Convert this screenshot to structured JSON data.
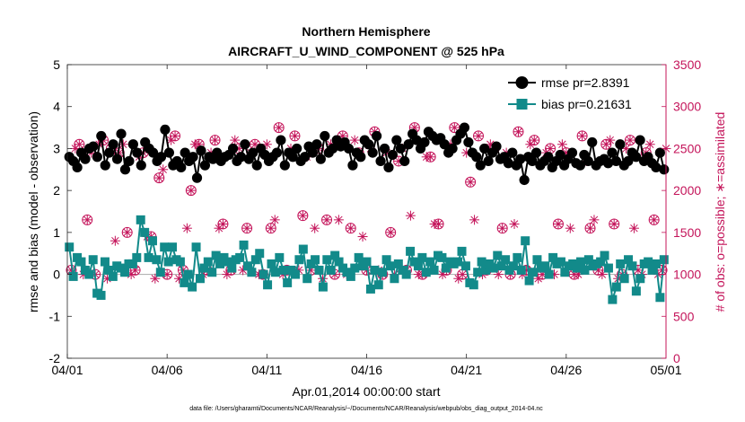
{
  "chart_data": {
    "type": "line",
    "title_line1": "Northern Hemisphere",
    "title_line2": "AIRCRAFT_U_WIND_COMPONENT @ 525 hPa",
    "xlabel": "Apr.01,2014 00:00:00 start",
    "ylabel_left": "rmse and bias (model - observation)",
    "ylabel_right": "# of obs: o=possible; ∗=assimilated",
    "footnote": "data file: /Users/gharamti/Documents/NCAR/Reanalysis/~/Documents/NCAR/Reanalysis/webpub/obs_diag_output_2014-04.nc",
    "x_ticks": [
      "04/01",
      "04/06",
      "04/11",
      "04/16",
      "04/21",
      "04/26",
      "05/01"
    ],
    "xlim": [
      0,
      30
    ],
    "ylim_left": [
      -2,
      5
    ],
    "ylim_right": [
      0,
      3500
    ],
    "y_ticks_left": [
      "-2",
      "-1",
      "0",
      "1",
      "2",
      "3",
      "4",
      "5"
    ],
    "y_ticks_right": [
      "0",
      "500",
      "1000",
      "1500",
      "2000",
      "2500",
      "3000",
      "3500"
    ],
    "colors": {
      "rmse": "#000000",
      "bias": "#128a8a",
      "obs": "#c4145a",
      "zero": "#b3b3b3"
    },
    "legend": {
      "rmse": "rmse pr=2.8391",
      "bias": "bias pr=0.21631",
      "placement": "top-right"
    },
    "series": [
      {
        "name": "rmse",
        "axis": "left",
        "values": [
          2.8,
          2.7,
          2.55,
          2.9,
          2.75,
          3.0,
          3.05,
          2.8,
          3.3,
          2.6,
          2.9,
          3.1,
          2.75,
          3.35,
          2.5,
          2.7,
          3.1,
          2.9,
          2.6,
          3.15,
          3.0,
          2.9,
          2.7,
          2.8,
          3.45,
          2.9,
          2.6,
          2.7,
          2.55,
          2.9,
          2.7,
          2.8,
          2.3,
          2.95,
          2.6,
          2.8,
          2.75,
          2.9,
          2.7,
          2.8,
          2.85,
          3.0,
          2.7,
          2.8,
          3.1,
          2.75,
          2.9,
          2.6,
          3.0,
          2.85,
          2.7,
          2.8,
          2.9,
          3.2,
          2.6,
          2.9,
          2.8,
          3.0,
          2.7,
          2.8,
          3.05,
          2.9,
          3.1,
          2.75,
          3.3,
          2.9,
          3.0,
          3.2,
          3.05,
          3.15,
          3.0,
          2.6,
          2.9,
          2.8,
          3.2,
          3.1,
          2.9,
          3.3,
          2.7,
          3.0,
          2.55,
          2.85,
          3.2,
          3.0,
          2.7,
          3.1,
          3.35,
          3.2,
          3.0,
          3.15,
          3.4,
          3.3,
          3.2,
          3.25,
          3.1,
          2.9,
          3.0,
          3.2,
          3.35,
          3.5,
          3.15,
          2.9,
          2.8,
          2.6,
          3.0,
          2.7,
          2.9,
          3.05,
          2.75,
          2.8,
          2.65,
          2.9,
          2.6,
          2.75,
          2.25,
          2.8,
          2.7,
          2.9,
          2.6,
          2.7,
          2.8,
          2.55,
          2.7,
          2.85,
          2.6,
          2.75,
          2.9,
          2.65,
          2.6,
          2.85,
          2.7,
          3.15,
          2.6,
          2.7,
          2.75,
          2.65,
          2.9,
          2.7,
          3.1,
          2.6,
          2.7,
          2.9,
          2.8,
          3.2,
          2.7,
          2.8,
          2.65,
          2.55,
          2.9,
          2.5
        ],
        "marker": "circle"
      },
      {
        "name": "bias",
        "axis": "left",
        "values": [
          0.65,
          -0.05,
          0.4,
          0.3,
          0.1,
          0.0,
          0.35,
          -0.45,
          -0.5,
          0.3,
          0.1,
          -0.05,
          0.2,
          0.15,
          0.05,
          0.25,
          0.25,
          0.4,
          1.3,
          1.0,
          0.4,
          0.8,
          0.35,
          0.05,
          0.65,
          0.3,
          0.65,
          0.35,
          0.3,
          -0.2,
          0.0,
          -0.3,
          0.65,
          -0.1,
          0.15,
          0.3,
          0.05,
          0.45,
          0.25,
          0.4,
          0.3,
          0.15,
          0.35,
          0.4,
          0.7,
          0.2,
          0.05,
          0.35,
          0.5,
          0.0,
          -0.25,
          0.25,
          0.05,
          0.4,
          0.1,
          -0.2,
          0.1,
          0.0,
          0.35,
          0.6,
          -0.1,
          0.25,
          0.35,
          0.1,
          -0.3,
          0.35,
          0.1,
          0.45,
          0.3,
          0.15,
          0.05,
          -0.05,
          0.15,
          0.4,
          0.2,
          0.3,
          -0.35,
          0.1,
          -0.25,
          0.05,
          0.35,
          0.2,
          -0.1,
          0.25,
          0.1,
          0.0,
          0.55,
          0.3,
          0.2,
          0.4,
          0.05,
          0.3,
          0.1,
          0.45,
          0.4,
          0.15,
          0.3,
          0.25,
          0.3,
          0.55,
          0.2,
          -0.2,
          -0.25,
          0.05,
          0.3,
          0.1,
          0.25,
          0.15,
          0.45,
          0.2,
          0.35,
          0.1,
          0.2,
          0.4,
          0.1,
          0.8,
          -0.15,
          0.05,
          0.35,
          0.15,
          0.2,
          0.0,
          0.4,
          0.25,
          0.3,
          0.05,
          0.2,
          0.25,
          0.15,
          0.3,
          0.1,
          0.35,
          0.2,
          0.25,
          0.3,
          0.45,
          0.15,
          -0.6,
          -0.3,
          0.25,
          -0.1,
          0.35,
          0.2,
          -0.4,
          -0.1,
          0.25,
          0.3,
          0.1,
          0.25,
          -0.55,
          0.35
        ],
        "marker": "square"
      },
      {
        "name": "obs_possible",
        "axis": "right",
        "marker": "circle-open",
        "x": [
          0.2,
          0.6,
          1.0,
          1.4,
          1.8,
          2.2,
          2.6,
          3.0,
          3.4,
          3.8,
          4.2,
          4.6,
          5.0,
          5.4,
          5.8,
          6.2,
          6.6,
          7.0,
          7.4,
          7.8,
          8.2,
          8.6,
          9.0,
          9.4,
          9.8,
          10.2,
          10.6,
          11.0,
          11.4,
          11.8,
          12.2,
          12.6,
          13.0,
          13.4,
          13.8,
          14.2,
          14.6,
          15.0,
          15.4,
          15.8,
          16.2,
          16.6,
          17.0,
          17.4,
          17.8,
          18.2,
          18.6,
          19.0,
          19.4,
          19.8,
          20.2,
          20.6,
          21.0,
          21.4,
          21.8,
          22.2,
          22.6,
          23.0,
          23.4,
          23.8,
          24.2,
          24.6,
          25.0,
          25.4,
          25.8,
          26.2,
          26.6,
          27.0,
          27.4,
          27.8,
          28.2,
          28.6,
          29.0,
          29.4,
          29.8
        ],
        "values": [
          1050,
          2550,
          1650,
          1000,
          2600,
          2500,
          2450,
          1500,
          1050,
          2450,
          1450,
          2150,
          1000,
          2650,
          1050,
          2000,
          2550,
          1050,
          2600,
          1600,
          1050,
          2500,
          1550,
          2550,
          1000,
          1550,
          2750,
          1050,
          2650,
          1700,
          1050,
          2500,
          1650,
          1000,
          2650,
          1550,
          2450,
          1050,
          2700,
          1000,
          1500,
          2350,
          1050,
          2750,
          1000,
          2400,
          1600,
          1050,
          2750,
          1000,
          2100,
          2650,
          1050,
          2500,
          1550,
          1000,
          2700,
          1050,
          2600,
          1000,
          2500,
          1600,
          2450,
          1000,
          2650,
          1550,
          1050,
          2550,
          1600,
          1000,
          2600,
          1050,
          2450,
          1650,
          1050
        ]
      },
      {
        "name": "obs_assimilated",
        "axis": "right",
        "marker": "asterisk",
        "x": [
          0.4,
          0.8,
          1.2,
          1.6,
          2.0,
          2.4,
          2.8,
          3.2,
          3.6,
          4.0,
          4.4,
          4.8,
          5.2,
          5.6,
          6.0,
          6.4,
          6.8,
          7.2,
          7.6,
          8.0,
          8.4,
          8.8,
          9.2,
          9.6,
          10.0,
          10.4,
          10.8,
          11.2,
          11.6,
          12.0,
          12.4,
          12.8,
          13.2,
          13.6,
          14.0,
          14.4,
          14.8,
          15.2,
          15.6,
          16.0,
          16.4,
          16.8,
          17.2,
          17.6,
          18.0,
          18.4,
          18.8,
          19.2,
          19.6,
          20.0,
          20.4,
          20.8,
          21.2,
          21.6,
          22.0,
          22.4,
          22.8,
          23.2,
          23.6,
          24.0,
          24.4,
          24.8,
          25.2,
          25.6,
          26.0,
          26.4,
          26.8,
          27.2,
          27.6,
          28.0,
          28.4,
          28.8,
          29.2,
          29.6,
          30.0
        ],
        "values": [
          2500,
          1000,
          2450,
          2550,
          950,
          1400,
          2550,
          1000,
          2400,
          1450,
          950,
          2250,
          2600,
          950,
          1550,
          2550,
          1000,
          2450,
          1550,
          1000,
          2600,
          1050,
          2450,
          1000,
          2550,
          1650,
          1000,
          2500,
          1050,
          2400,
          1550,
          950,
          2550,
          1650,
          1000,
          2600,
          1450,
          2500,
          1050,
          2450,
          1000,
          2500,
          1700,
          1000,
          2400,
          1600,
          1000,
          2550,
          950,
          2450,
          1650,
          1000,
          2550,
          1000,
          2450,
          1600,
          1000,
          2550,
          950,
          2450,
          1000,
          2550,
          1550,
          1000,
          2350,
          1650,
          1000,
          2600,
          950,
          2500,
          1550,
          1000,
          2550,
          1000,
          2500
        ]
      }
    ]
  }
}
